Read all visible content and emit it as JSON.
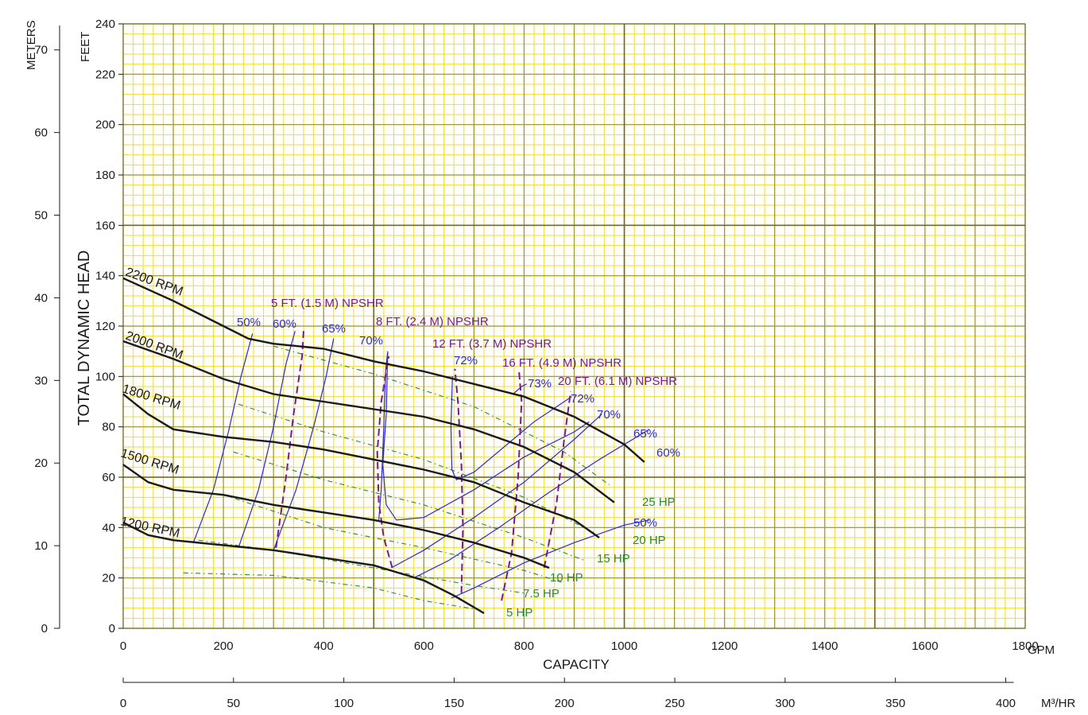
{
  "chart_data": {
    "type": "line",
    "title": "",
    "xlabel": "CAPACITY",
    "ylabel": "TOTAL DYNAMIC HEAD",
    "x_unit": "GPM",
    "x2_unit": "M³/HR",
    "y_unit": "FEET",
    "y2_unit": "METERS",
    "xlim": [
      0,
      1800
    ],
    "ylim": [
      0,
      240
    ],
    "x_ticks": [
      0,
      200,
      400,
      600,
      800,
      1000,
      1200,
      1400,
      1600,
      1800
    ],
    "y_ticks": [
      0,
      20,
      40,
      60,
      80,
      100,
      120,
      140,
      160,
      180,
      200,
      220,
      240
    ],
    "x2_ticks": [
      0,
      50,
      100,
      150,
      200,
      250,
      300,
      350,
      400
    ],
    "y2_ticks": [
      0,
      10,
      20,
      30,
      40,
      50,
      60,
      70
    ],
    "grid": true,
    "colors": {
      "grid_fine": "#eedb3a",
      "grid_major": "#6f6a2c",
      "grid_band": "#9b9438",
      "rpm": "#1a1a1a",
      "efficiency": "#2b2bd6",
      "npshr": "#7a1a8c",
      "hp": "#2a8c2a",
      "axis": "#1a1a1a"
    },
    "rpm_curves": [
      {
        "name": "2200 RPM",
        "points": [
          [
            0,
            139
          ],
          [
            100,
            130
          ],
          [
            200,
            120
          ],
          [
            250,
            115
          ],
          [
            300,
            113
          ],
          [
            400,
            111
          ],
          [
            500,
            106
          ],
          [
            600,
            102
          ],
          [
            700,
            97
          ],
          [
            800,
            92
          ],
          [
            900,
            84
          ],
          [
            1000,
            73
          ],
          [
            1040,
            66
          ]
        ]
      },
      {
        "name": "2000 RPM",
        "points": [
          [
            0,
            114
          ],
          [
            100,
            107
          ],
          [
            200,
            99
          ],
          [
            300,
            93
          ],
          [
            400,
            90
          ],
          [
            500,
            87
          ],
          [
            600,
            84
          ],
          [
            700,
            79
          ],
          [
            800,
            72
          ],
          [
            900,
            62
          ],
          [
            980,
            50
          ]
        ]
      },
      {
        "name": "1800 RPM",
        "points": [
          [
            0,
            93
          ],
          [
            50,
            85
          ],
          [
            100,
            79
          ],
          [
            200,
            76
          ],
          [
            300,
            74
          ],
          [
            400,
            71
          ],
          [
            500,
            67
          ],
          [
            600,
            63
          ],
          [
            700,
            58
          ],
          [
            800,
            50
          ],
          [
            900,
            43
          ],
          [
            950,
            36
          ]
        ]
      },
      {
        "name": "1500 RPM",
        "points": [
          [
            0,
            65
          ],
          [
            50,
            58
          ],
          [
            100,
            55
          ],
          [
            200,
            53
          ],
          [
            300,
            49
          ],
          [
            400,
            46
          ],
          [
            500,
            43
          ],
          [
            600,
            39
          ],
          [
            700,
            34
          ],
          [
            800,
            28
          ],
          [
            850,
            24
          ]
        ]
      },
      {
        "name": "1200 RPM",
        "points": [
          [
            0,
            42
          ],
          [
            50,
            37
          ],
          [
            100,
            35
          ],
          [
            200,
            33
          ],
          [
            300,
            31
          ],
          [
            400,
            28
          ],
          [
            500,
            25
          ],
          [
            600,
            19
          ],
          [
            660,
            13
          ],
          [
            720,
            6
          ]
        ]
      }
    ],
    "efficiency_curves": [
      {
        "name": "50%",
        "points": [
          [
            140,
            34
          ],
          [
            180,
            55
          ],
          [
            210,
            78
          ],
          [
            235,
            100
          ],
          [
            258,
            117
          ]
        ]
      },
      {
        "name": "60%",
        "points": [
          [
            230,
            32
          ],
          [
            270,
            55
          ],
          [
            300,
            80
          ],
          [
            325,
            105
          ],
          [
            343,
            118
          ]
        ]
      },
      {
        "name": "65%",
        "points": [
          [
            300,
            31
          ],
          [
            345,
            55
          ],
          [
            380,
            80
          ],
          [
            405,
            100
          ],
          [
            420,
            115
          ]
        ]
      },
      {
        "name": "70%",
        "points": [
          [
            510,
            43
          ],
          [
            515,
            55
          ],
          [
            520,
            80
          ],
          [
            524,
            103
          ],
          [
            528,
            110
          ],
          [
            525,
            85
          ],
          [
            518,
            65
          ],
          [
            525,
            49
          ],
          [
            545,
            43
          ],
          [
            600,
            44
          ],
          [
            700,
            55
          ],
          [
            800,
            68
          ],
          [
            900,
            78
          ],
          [
            930,
            82
          ]
        ]
      },
      {
        "name": "72%",
        "points": [
          [
            657,
            100
          ],
          [
            654,
            80
          ],
          [
            656,
            63
          ],
          [
            665,
            59
          ],
          [
            700,
            62
          ],
          [
            760,
            72
          ],
          [
            820,
            82
          ],
          [
            880,
            90
          ],
          [
            895,
            92
          ]
        ]
      },
      {
        "name": "73%",
        "points": [
          [
            778,
            93
          ],
          [
            795,
            96
          ],
          [
            805,
            97
          ]
        ]
      },
      {
        "name": "72%",
        "points": [
          [
            535,
            24
          ],
          [
            600,
            31
          ],
          [
            700,
            44
          ],
          [
            800,
            58
          ],
          [
            900,
            75
          ],
          [
            955,
            85
          ]
        ]
      },
      {
        "name": "60%",
        "points": [
          [
            580,
            20
          ],
          [
            650,
            27
          ],
          [
            750,
            40
          ],
          [
            850,
            54
          ],
          [
            950,
            67
          ],
          [
            1050,
            79
          ]
        ]
      },
      {
        "name": "50%",
        "points": [
          [
            655,
            12
          ],
          [
            700,
            16
          ],
          [
            800,
            26
          ],
          [
            900,
            34
          ],
          [
            1000,
            41
          ],
          [
            1050,
            43
          ]
        ]
      }
    ],
    "npshr_curves": [
      {
        "name": "5 FT. (1.5 M) NPSHR",
        "points": [
          [
            305,
            32
          ],
          [
            325,
            60
          ],
          [
            340,
            85
          ],
          [
            357,
            108
          ],
          [
            360,
            118
          ]
        ]
      },
      {
        "name": "8 FT. (2.4 M) NPSHR",
        "points": [
          [
            537,
            24
          ],
          [
            520,
            36
          ],
          [
            510,
            50
          ],
          [
            507,
            70
          ],
          [
            515,
            90
          ],
          [
            530,
            108
          ]
        ]
      },
      {
        "name": "12 FT. (3.7 M) NPSHR",
        "points": [
          [
            675,
            14
          ],
          [
            678,
            40
          ],
          [
            675,
            65
          ],
          [
            668,
            90
          ],
          [
            662,
            103
          ]
        ]
      },
      {
        "name": "16 FT. (4.9 M) NPSHR",
        "points": [
          [
            755,
            11
          ],
          [
            775,
            30
          ],
          [
            788,
            60
          ],
          [
            795,
            90
          ],
          [
            790,
            102
          ]
        ]
      },
      {
        "name": "20 FT. (6.1 M) NPSHR",
        "points": [
          [
            840,
            24
          ],
          [
            865,
            50
          ],
          [
            880,
            75
          ],
          [
            893,
            94
          ]
        ]
      }
    ],
    "hp_curves": [
      {
        "name": "25 HP",
        "points": [
          [
            300,
            112
          ],
          [
            500,
            101
          ],
          [
            700,
            88
          ],
          [
            880,
            70
          ],
          [
            970,
            57
          ]
        ]
      },
      {
        "name": "20 HP",
        "points": [
          [
            230,
            89
          ],
          [
            400,
            78
          ],
          [
            600,
            67
          ],
          [
            800,
            52
          ],
          [
            940,
            38
          ]
        ]
      },
      {
        "name": "15 HP",
        "points": [
          [
            220,
            70
          ],
          [
            400,
            59
          ],
          [
            600,
            49
          ],
          [
            800,
            36
          ],
          [
            920,
            27
          ]
        ]
      },
      {
        "name": "10 HP",
        "points": [
          [
            200,
            53
          ],
          [
            400,
            40
          ],
          [
            600,
            32
          ],
          [
            800,
            23
          ],
          [
            880,
            18
          ]
        ]
      },
      {
        "name": "7.5 HP",
        "points": [
          [
            150,
            35
          ],
          [
            300,
            31
          ],
          [
            500,
            24
          ],
          [
            700,
            17
          ],
          [
            800,
            14
          ]
        ]
      },
      {
        "name": "5 HP",
        "points": [
          [
            120,
            22
          ],
          [
            300,
            21
          ],
          [
            500,
            16
          ],
          [
            600,
            11
          ],
          [
            720,
            7
          ]
        ]
      }
    ],
    "annotations": {
      "rpm_labels": [
        "2200 RPM",
        "2000 RPM",
        "1800 RPM",
        "1500 RPM",
        "1200 RPM"
      ],
      "efficiency_labels": [
        "50%",
        "60%",
        "65%",
        "70%",
        "72%",
        "73%",
        "72%",
        "70%",
        "65%",
        "60%",
        "50%"
      ],
      "npshr_labels": [
        "5 FT. (1.5 M) NPSHR",
        "8 FT. (2.4 M) NPSHR",
        "12 FT. (3.7 M) NPSHR",
        "16 FT. (4.9 M) NPSHR",
        "20 FT. (6.1 M) NPSHR"
      ],
      "hp_labels": [
        "25 HP",
        "20 HP",
        "15 HP",
        "10 HP",
        "7.5 HP",
        "5 HP"
      ]
    }
  }
}
